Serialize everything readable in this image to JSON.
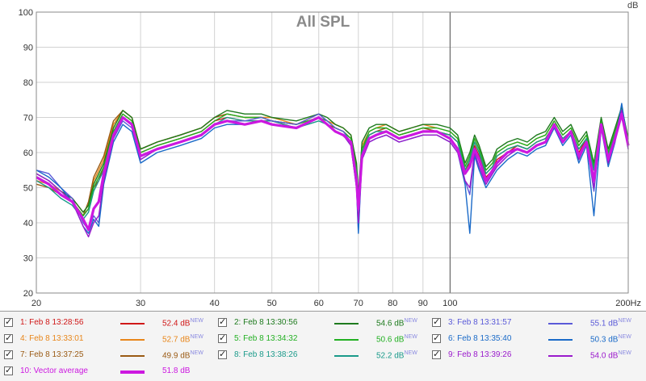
{
  "chart_data": {
    "type": "line",
    "title": "All SPL",
    "unit_label": "dB",
    "xscale": "log",
    "xlim": [
      20,
      200
    ],
    "ylim": [
      20,
      100
    ],
    "xticks": [
      {
        "v": 20,
        "label": "20"
      },
      {
        "v": 30,
        "label": "30"
      },
      {
        "v": 40,
        "label": "40"
      },
      {
        "v": 50,
        "label": "50"
      },
      {
        "v": 60,
        "label": "60"
      },
      {
        "v": 70,
        "label": "70"
      },
      {
        "v": 80,
        "label": "80"
      },
      {
        "v": 90,
        "label": "90"
      },
      {
        "v": 100,
        "label": "100"
      },
      {
        "v": 200,
        "label": "200Hz"
      }
    ],
    "yticks": [
      20,
      30,
      40,
      50,
      60,
      70,
      80,
      90,
      100
    ],
    "marker_x": 100,
    "grid": true,
    "x": [
      20,
      21,
      22,
      23,
      24,
      24.5,
      25,
      25.5,
      26,
      27,
      28,
      29,
      30,
      32,
      35,
      38,
      40,
      42,
      45,
      48,
      50,
      55,
      60,
      62,
      64,
      66,
      68,
      69.5,
      70,
      71,
      73,
      75,
      78,
      82,
      86,
      90,
      95,
      100,
      103,
      106,
      108,
      110,
      112,
      115,
      118,
      120,
      125,
      130,
      135,
      140,
      145,
      150,
      155,
      160,
      165,
      170,
      175,
      180,
      185,
      190,
      195,
      200
    ],
    "series": [
      {
        "name": "Feb 8 13:28:56",
        "color": "#d01818",
        "width": 1.4,
        "values": [
          53,
          51,
          48,
          46,
          42,
          44,
          50,
          52,
          56,
          66,
          71,
          69,
          60,
          62,
          64,
          66,
          69,
          70,
          69,
          69,
          69,
          67,
          70,
          68,
          67,
          66,
          64,
          54,
          45,
          60,
          65,
          66,
          67,
          65,
          66,
          67,
          66,
          65,
          63,
          55,
          57,
          62,
          59,
          53,
          55,
          58,
          60,
          62,
          61,
          63,
          64,
          68,
          63,
          66,
          60,
          64,
          55,
          68,
          59,
          65,
          71,
          62
        ]
      },
      {
        "name": "Feb 8 13:33:01",
        "color": "#e8861a",
        "width": 1.4,
        "values": [
          52,
          51,
          49,
          47,
          43,
          45,
          52,
          55,
          58,
          68,
          72,
          70,
          61,
          63,
          65,
          67,
          70,
          71,
          70,
          70,
          70,
          68,
          71,
          69,
          68,
          67,
          65,
          56,
          47,
          62,
          66,
          67,
          68,
          66,
          67,
          68,
          67,
          66,
          64,
          56,
          59,
          64,
          61,
          55,
          57,
          60,
          62,
          63,
          62,
          64,
          65,
          69,
          65,
          67,
          62,
          65,
          56,
          69,
          60,
          66,
          72,
          63
        ]
      },
      {
        "name": "Feb 8 13:37:25",
        "color": "#9a5a14",
        "width": 1.4,
        "values": [
          51,
          50,
          48,
          46,
          42,
          46,
          53,
          56,
          59,
          69,
          72,
          70,
          61,
          63,
          65,
          67,
          70,
          71,
          70,
          70,
          69,
          68,
          70,
          68,
          67,
          66,
          64,
          55,
          46,
          61,
          65,
          66,
          67,
          65,
          66,
          67,
          66,
          65,
          63,
          55,
          58,
          63,
          60,
          54,
          56,
          59,
          61,
          62,
          61,
          63,
          64,
          68,
          64,
          66,
          61,
          64,
          55,
          68,
          59,
          65,
          71,
          62
        ]
      },
      {
        "name": "Feb 8 13:30:56",
        "color": "#1e7a1e",
        "width": 1.4,
        "values": [
          54,
          52,
          49,
          47,
          43,
          45,
          51,
          54,
          57,
          67,
          72,
          70,
          61,
          63,
          65,
          67,
          70,
          72,
          71,
          71,
          70,
          69,
          71,
          70,
          68,
          67,
          65,
          57,
          48,
          63,
          67,
          68,
          68,
          66,
          67,
          68,
          68,
          67,
          65,
          57,
          60,
          65,
          62,
          56,
          58,
          61,
          63,
          64,
          63,
          65,
          66,
          70,
          66,
          68,
          63,
          66,
          57,
          70,
          61,
          67,
          73,
          64
        ]
      },
      {
        "name": "Feb 8 13:34:32",
        "color": "#22b022",
        "width": 1.4,
        "values": [
          53,
          51,
          48,
          46,
          42,
          44,
          50,
          53,
          56,
          66,
          71,
          69,
          60,
          62,
          64,
          66,
          69,
          71,
          70,
          70,
          69,
          68,
          70,
          69,
          67,
          66,
          64,
          55,
          46,
          61,
          66,
          67,
          67,
          65,
          66,
          67,
          67,
          66,
          64,
          56,
          59,
          64,
          61,
          55,
          57,
          60,
          62,
          63,
          62,
          64,
          65,
          69,
          65,
          67,
          62,
          65,
          56,
          69,
          60,
          66,
          72,
          63
        ]
      },
      {
        "name": "Feb 8 13:38:26",
        "color": "#1a9a8a",
        "width": 1.4,
        "values": [
          52,
          50,
          47,
          45,
          41,
          43,
          49,
          52,
          55,
          65,
          70,
          68,
          59,
          61,
          63,
          65,
          68,
          70,
          69,
          69,
          69,
          67,
          69,
          68,
          66,
          65,
          63,
          54,
          45,
          60,
          65,
          66,
          66,
          64,
          65,
          66,
          66,
          65,
          63,
          55,
          58,
          63,
          60,
          54,
          56,
          59,
          61,
          62,
          61,
          63,
          64,
          68,
          64,
          66,
          61,
          64,
          55,
          68,
          59,
          65,
          71,
          62
        ]
      },
      {
        "name": "Feb 8 13:31:57",
        "color": "#5a5ad8",
        "width": 1.4,
        "values": [
          55,
          54,
          50,
          47,
          40,
          38,
          42,
          40,
          52,
          64,
          69,
          67,
          58,
          61,
          63,
          65,
          68,
          69,
          69,
          70,
          69,
          68,
          71,
          69,
          67,
          66,
          63,
          51,
          38,
          59,
          64,
          65,
          66,
          64,
          65,
          66,
          66,
          64,
          61,
          52,
          48,
          60,
          56,
          51,
          54,
          56,
          59,
          61,
          60,
          62,
          63,
          68,
          63,
          66,
          58,
          63,
          49,
          68,
          57,
          64,
          72,
          61
        ]
      },
      {
        "name": "Feb 8 13:35:40",
        "color": "#1a6ac8",
        "width": 1.4,
        "values": [
          55,
          53,
          50,
          46,
          39,
          37,
          41,
          39,
          51,
          63,
          68,
          66,
          57,
          60,
          62,
          64,
          67,
          68,
          68,
          69,
          68,
          67,
          70,
          68,
          66,
          65,
          62,
          50,
          37,
          58,
          63,
          64,
          65,
          63,
          64,
          65,
          65,
          63,
          60,
          51,
          37,
          59,
          55,
          50,
          53,
          55,
          58,
          60,
          59,
          61,
          62,
          67,
          62,
          65,
          57,
          62,
          42,
          67,
          56,
          63,
          74,
          62
        ]
      },
      {
        "name": "Feb 8 13:39:26",
        "color": "#9a1acc",
        "width": 1.4,
        "values": [
          54,
          52,
          49,
          46,
          39,
          36,
          40,
          42,
          52,
          64,
          70,
          68,
          58,
          61,
          63,
          65,
          68,
          69,
          68,
          69,
          68,
          67,
          70,
          68,
          66,
          65,
          62,
          50,
          40,
          58,
          63,
          64,
          65,
          63,
          64,
          65,
          65,
          63,
          60,
          52,
          50,
          60,
          56,
          51,
          54,
          56,
          59,
          61,
          60,
          62,
          63,
          68,
          63,
          66,
          58,
          63,
          50,
          68,
          57,
          64,
          72,
          61
        ]
      },
      {
        "name": "Vector average",
        "color": "#cc18e0",
        "width": 3.2,
        "values": [
          53,
          51,
          48,
          46,
          41,
          38,
          44,
          46,
          54,
          65,
          70,
          68,
          59,
          61,
          63,
          65,
          68,
          69,
          68,
          69,
          68,
          67,
          70,
          68,
          66,
          65,
          63,
          52,
          44,
          59,
          64,
          65,
          66,
          64,
          65,
          66,
          66,
          64,
          61,
          54,
          56,
          61,
          58,
          52,
          55,
          57,
          60,
          61,
          60,
          62,
          63,
          68,
          63,
          66,
          59,
          63,
          52,
          68,
          58,
          64,
          71,
          62
        ]
      }
    ]
  },
  "legend": [
    {
      "label": "1: Feb 8 13:28:56",
      "value": "52.4 dB",
      "badge": "NEW",
      "color": "#d01818",
      "checked": "✓"
    },
    {
      "label": "2: Feb 8 13:30:56",
      "value": "54.6 dB",
      "badge": "NEW",
      "color": "#1e7a1e",
      "checked": "✓"
    },
    {
      "label": "3: Feb 8 13:31:57",
      "value": "55.1 dB",
      "badge": "NEW",
      "color": "#5a5ad8",
      "checked": "✓"
    },
    {
      "label": "4: Feb 8 13:33:01",
      "value": "52.7 dB",
      "badge": "NEW",
      "color": "#e8861a",
      "checked": "✓"
    },
    {
      "label": "5: Feb 8 13:34:32",
      "value": "50.6 dB",
      "badge": "NEW",
      "color": "#22b022",
      "checked": "✓"
    },
    {
      "label": "6: Feb 8 13:35:40",
      "value": "50.3 dB",
      "badge": "NEW",
      "color": "#1a6ac8",
      "checked": "✓"
    },
    {
      "label": "7: Feb 8 13:37:25",
      "value": "49.9 dB",
      "badge": "NEW",
      "color": "#9a5a14",
      "checked": "✓"
    },
    {
      "label": "8: Feb 8 13:38:26",
      "value": "52.2 dB",
      "badge": "NEW",
      "color": "#1a9a8a",
      "checked": "✓"
    },
    {
      "label": "9: Feb 8 13:39:26",
      "value": "54.0 dB",
      "badge": "NEW",
      "color": "#9a1acc",
      "checked": "✓"
    },
    {
      "label": "10: Vector average",
      "value": "51.8 dB",
      "badge": "",
      "color": "#cc18e0",
      "checked": "✓"
    }
  ]
}
